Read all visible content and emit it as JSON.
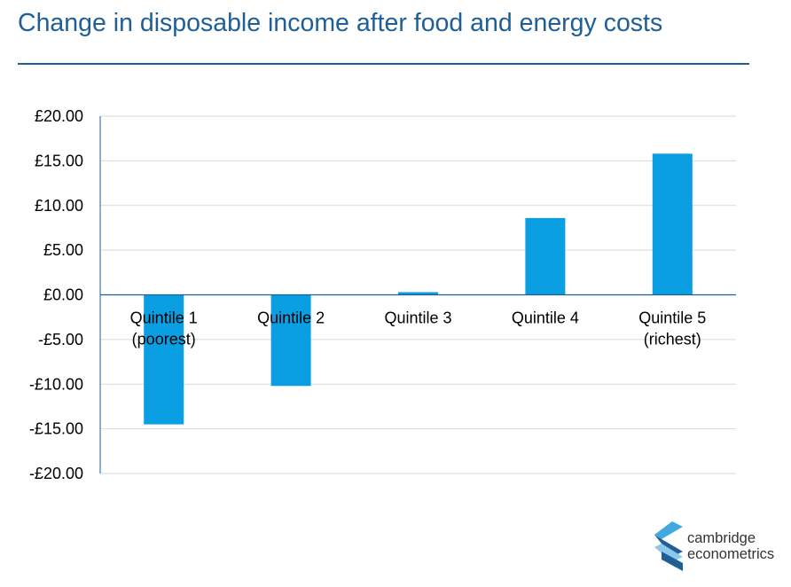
{
  "chart_data": {
    "type": "bar",
    "title": "Change in disposable income after food and energy costs",
    "categories": [
      "Quintile 1\n(poorest)",
      "Quintile 2",
      "Quintile 3",
      "Quintile 4",
      "Quintile 5\n(richest)"
    ],
    "values": [
      -14.5,
      -10.2,
      0.3,
      8.6,
      15.8
    ],
    "ylim": [
      -20,
      20
    ],
    "yticks": [
      20,
      15,
      10,
      5,
      0,
      -5,
      -10,
      -15,
      -20
    ],
    "ytick_labels": [
      "£20.00",
      "£15.00",
      "£10.00",
      "£5.00",
      "£0.00",
      "-£5.00",
      "-£10.00",
      "-£15.00",
      "-£20.00"
    ],
    "bar_color": "#0a9ee2",
    "grid": true
  },
  "brand": {
    "line1": "cambridge",
    "line2": "econometrics"
  },
  "colors": {
    "title": "#1f5f96",
    "axis": "#1f5f96",
    "grid": "#d9d9d9"
  }
}
